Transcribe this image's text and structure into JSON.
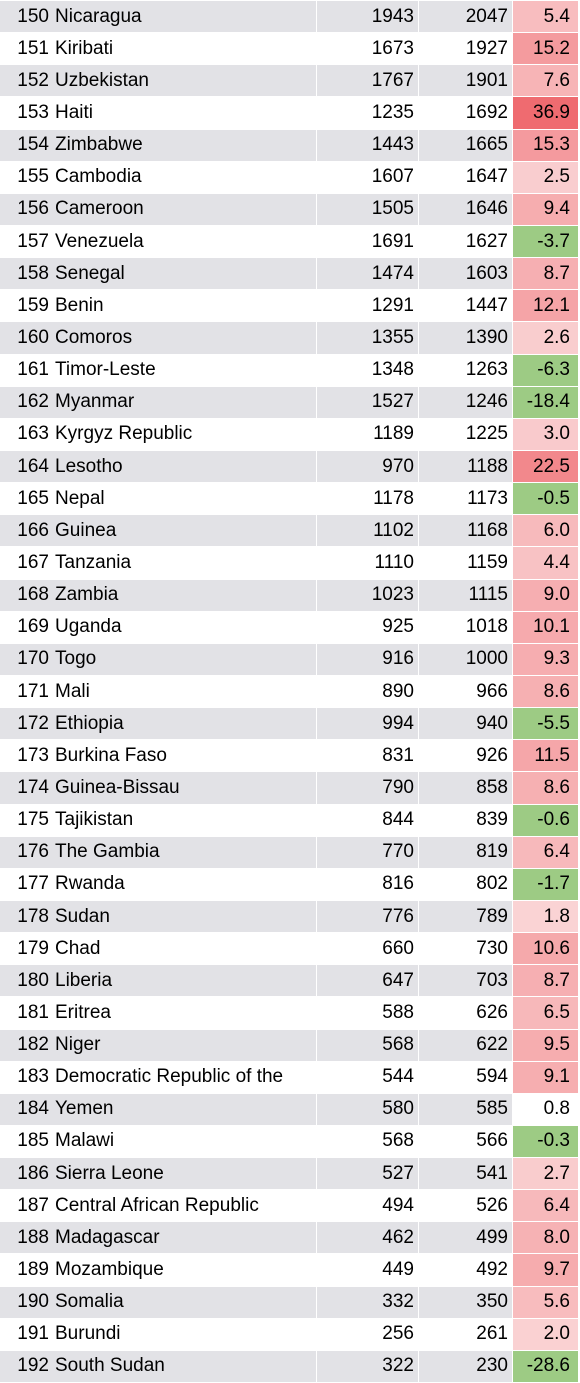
{
  "colors": {
    "row_shade": "#e2e2e6",
    "positive_max": "#ef6b70",
    "positive_min": "#fdf0f0",
    "negative": "#9dcb84",
    "neutral": "#ffffff"
  },
  "rows": [
    {
      "rank": "150",
      "country": "Nicaragua",
      "v1": "1943",
      "v2": "2047",
      "pct": "5.4"
    },
    {
      "rank": "151",
      "country": "Kiribati",
      "v1": "1673",
      "v2": "1927",
      "pct": "15.2"
    },
    {
      "rank": "152",
      "country": "Uzbekistan",
      "v1": "1767",
      "v2": "1901",
      "pct": "7.6"
    },
    {
      "rank": "153",
      "country": "Haiti",
      "v1": "1235",
      "v2": "1692",
      "pct": "36.9"
    },
    {
      "rank": "154",
      "country": "Zimbabwe",
      "v1": "1443",
      "v2": "1665",
      "pct": "15.3"
    },
    {
      "rank": "155",
      "country": "Cambodia",
      "v1": "1607",
      "v2": "1647",
      "pct": "2.5"
    },
    {
      "rank": "156",
      "country": "Cameroon",
      "v1": "1505",
      "v2": "1646",
      "pct": "9.4"
    },
    {
      "rank": "157",
      "country": "Venezuela",
      "v1": "1691",
      "v2": "1627",
      "pct": "-3.7"
    },
    {
      "rank": "158",
      "country": "Senegal",
      "v1": "1474",
      "v2": "1603",
      "pct": "8.7"
    },
    {
      "rank": "159",
      "country": "Benin",
      "v1": "1291",
      "v2": "1447",
      "pct": "12.1"
    },
    {
      "rank": "160",
      "country": "Comoros",
      "v1": "1355",
      "v2": "1390",
      "pct": "2.6"
    },
    {
      "rank": "161",
      "country": "Timor-Leste",
      "v1": "1348",
      "v2": "1263",
      "pct": "-6.3"
    },
    {
      "rank": "162",
      "country": "Myanmar",
      "v1": "1527",
      "v2": "1246",
      "pct": "-18.4"
    },
    {
      "rank": "163",
      "country": "Kyrgyz Republic",
      "v1": "1189",
      "v2": "1225",
      "pct": "3.0"
    },
    {
      "rank": "164",
      "country": "Lesotho",
      "v1": "970",
      "v2": "1188",
      "pct": "22.5"
    },
    {
      "rank": "165",
      "country": "Nepal",
      "v1": "1178",
      "v2": "1173",
      "pct": "-0.5"
    },
    {
      "rank": "166",
      "country": "Guinea",
      "v1": "1102",
      "v2": "1168",
      "pct": "6.0"
    },
    {
      "rank": "167",
      "country": "Tanzania",
      "v1": "1110",
      "v2": "1159",
      "pct": "4.4"
    },
    {
      "rank": "168",
      "country": "Zambia",
      "v1": "1023",
      "v2": "1115",
      "pct": "9.0"
    },
    {
      "rank": "169",
      "country": "Uganda",
      "v1": "925",
      "v2": "1018",
      "pct": "10.1"
    },
    {
      "rank": "170",
      "country": "Togo",
      "v1": "916",
      "v2": "1000",
      "pct": "9.3"
    },
    {
      "rank": "171",
      "country": "Mali",
      "v1": "890",
      "v2": "966",
      "pct": "8.6"
    },
    {
      "rank": "172",
      "country": "Ethiopia",
      "v1": "994",
      "v2": "940",
      "pct": "-5.5"
    },
    {
      "rank": "173",
      "country": "Burkina Faso",
      "v1": "831",
      "v2": "926",
      "pct": "11.5"
    },
    {
      "rank": "174",
      "country": "Guinea-Bissau",
      "v1": "790",
      "v2": "858",
      "pct": "8.6"
    },
    {
      "rank": "175",
      "country": "Tajikistan",
      "v1": "844",
      "v2": "839",
      "pct": "-0.6"
    },
    {
      "rank": "176",
      "country": "The Gambia",
      "v1": "770",
      "v2": "819",
      "pct": "6.4"
    },
    {
      "rank": "177",
      "country": "Rwanda",
      "v1": "816",
      "v2": "802",
      "pct": "-1.7"
    },
    {
      "rank": "178",
      "country": "Sudan",
      "v1": "776",
      "v2": "789",
      "pct": "1.8"
    },
    {
      "rank": "179",
      "country": "Chad",
      "v1": "660",
      "v2": "730",
      "pct": "10.6"
    },
    {
      "rank": "180",
      "country": "Liberia",
      "v1": "647",
      "v2": "703",
      "pct": "8.7"
    },
    {
      "rank": "181",
      "country": "Eritrea",
      "v1": "588",
      "v2": "626",
      "pct": "6.5"
    },
    {
      "rank": "182",
      "country": "Niger",
      "v1": "568",
      "v2": "622",
      "pct": "9.5"
    },
    {
      "rank": "183",
      "country": "Democratic Republic of the",
      "v1": "544",
      "v2": "594",
      "pct": "9.1"
    },
    {
      "rank": "184",
      "country": "Yemen",
      "v1": "580",
      "v2": "585",
      "pct": "0.8"
    },
    {
      "rank": "185",
      "country": "Malawi",
      "v1": "568",
      "v2": "566",
      "pct": "-0.3"
    },
    {
      "rank": "186",
      "country": "Sierra Leone",
      "v1": "527",
      "v2": "541",
      "pct": "2.7"
    },
    {
      "rank": "187",
      "country": "Central African Republic",
      "v1": "494",
      "v2": "526",
      "pct": "6.4"
    },
    {
      "rank": "188",
      "country": "Madagascar",
      "v1": "462",
      "v2": "499",
      "pct": "8.0"
    },
    {
      "rank": "189",
      "country": "Mozambique",
      "v1": "449",
      "v2": "492",
      "pct": "9.7"
    },
    {
      "rank": "190",
      "country": "Somalia",
      "v1": "332",
      "v2": "350",
      "pct": "5.6"
    },
    {
      "rank": "191",
      "country": "Burundi",
      "v1": "256",
      "v2": "261",
      "pct": "2.0"
    },
    {
      "rank": "192",
      "country": "South Sudan",
      "v1": "322",
      "v2": "230",
      "pct": "-28.6"
    }
  ]
}
